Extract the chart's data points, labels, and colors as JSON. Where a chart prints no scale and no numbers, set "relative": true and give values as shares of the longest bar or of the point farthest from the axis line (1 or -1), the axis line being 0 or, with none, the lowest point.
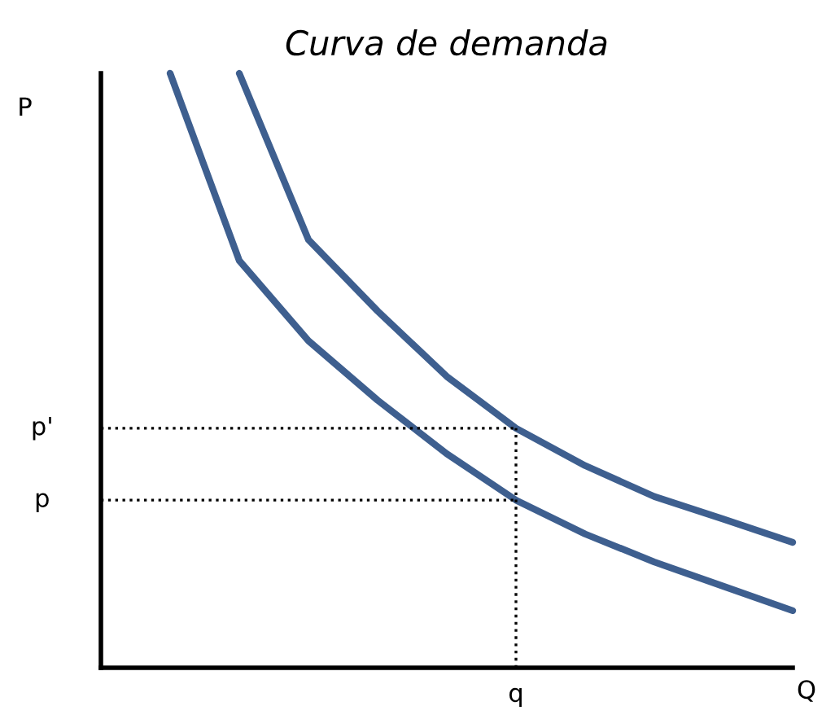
{
  "chart_data": {
    "type": "line",
    "title": "Curva de demanda",
    "xlabel": "Q",
    "ylabel": "P",
    "relative": true,
    "categories": [
      null,
      null,
      null,
      null,
      null,
      null,
      null,
      null,
      null,
      null,
      null
    ],
    "series": [
      {
        "color": "#3e5f8f",
        "values": [
          null,
          1.0,
          0.685,
          0.55,
          0.45,
          0.36,
          0.282,
          0.225,
          0.178,
          0.137,
          0.096
        ]
      },
      {
        "color": "#3e5f8f",
        "values": [
          null,
          null,
          1.0,
          0.72,
          0.6,
          0.49,
          0.403,
          0.34,
          0.288,
          0.25,
          0.211
        ]
      }
    ],
    "ref_lines": [
      {
        "axis": "y",
        "value": 0.403,
        "label": "p'",
        "color": "#000000",
        "line_style": "dotted"
      },
      {
        "axis": "y",
        "value": 0.282,
        "label": "p",
        "color": "#000000",
        "line_style": "dotted"
      }
    ],
    "annotations": [
      "q"
    ],
    "marker": "none",
    "line_style": "solid"
  }
}
